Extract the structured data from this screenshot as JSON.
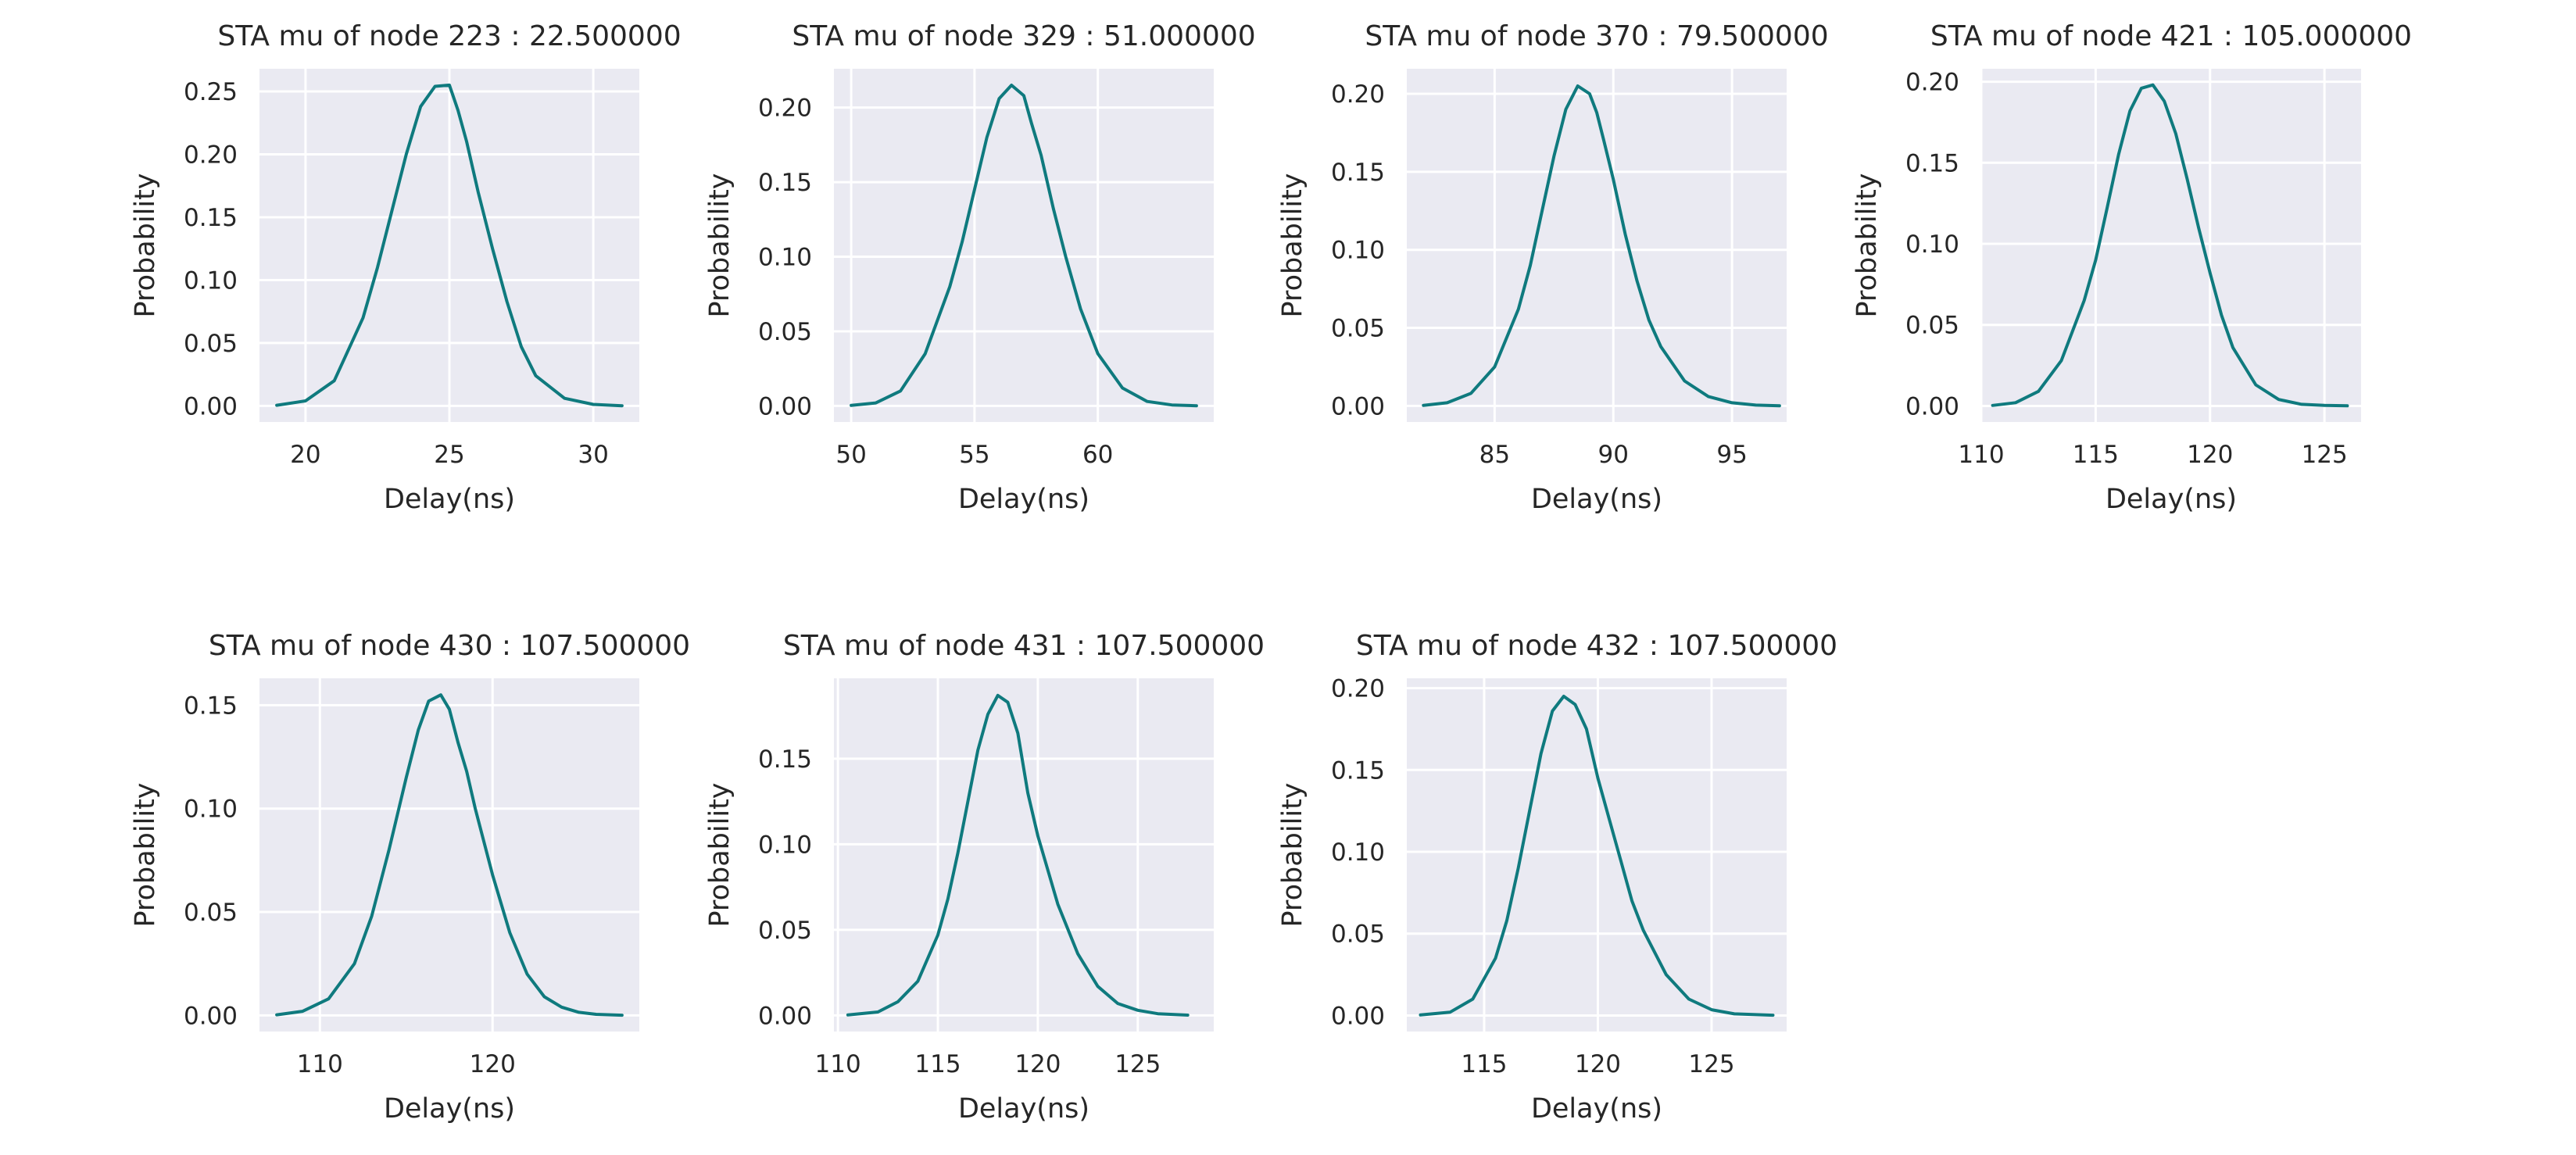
{
  "chart_data": [
    {
      "type": "line",
      "title": "STA mu of node 223 : 22.500000",
      "xlabel": "Delay(ns)",
      "ylabel": "Probability",
      "xlim": [
        18.4,
        31.6
      ],
      "ylim": [
        -0.0128,
        0.268
      ],
      "xticks": [
        20,
        25,
        30
      ],
      "yticks": [
        0.0,
        0.05,
        0.1,
        0.15,
        0.2,
        0.25
      ],
      "xtick_labels": [
        "20",
        "25",
        "30"
      ],
      "ytick_labels": [
        "0.00",
        "0.05",
        "0.10",
        "0.15",
        "0.20",
        "0.25"
      ],
      "grid": true,
      "series": [
        {
          "x": [
            19,
            20,
            21,
            22,
            22.5,
            23,
            23.5,
            24,
            24.5,
            25,
            25.3,
            25.6,
            26,
            26.5,
            27,
            27.5,
            28,
            29,
            30,
            31
          ],
          "values": [
            0.0005,
            0.004,
            0.02,
            0.07,
            0.11,
            0.155,
            0.2,
            0.238,
            0.254,
            0.255,
            0.235,
            0.21,
            0.17,
            0.125,
            0.083,
            0.047,
            0.024,
            0.006,
            0.0012,
            0.0001
          ]
        }
      ]
    },
    {
      "type": "line",
      "title": "STA mu of node 329 : 51.000000",
      "xlabel": "Delay(ns)",
      "ylabel": "Probability",
      "xlim": [
        49.3,
        64.7
      ],
      "ylim": [
        -0.0108,
        0.226
      ],
      "xticks": [
        50,
        55,
        60
      ],
      "yticks": [
        0.0,
        0.05,
        0.1,
        0.15,
        0.2
      ],
      "xtick_labels": [
        "50",
        "55",
        "60"
      ],
      "ytick_labels": [
        "0.00",
        "0.05",
        "0.10",
        "0.15",
        "0.20"
      ],
      "grid": true,
      "series": [
        {
          "x": [
            50,
            51,
            52,
            53,
            54,
            54.5,
            55,
            55.5,
            56,
            56.5,
            57,
            57.3,
            57.7,
            58.2,
            58.7,
            59.3,
            60,
            61,
            62,
            63,
            64
          ],
          "values": [
            0.0003,
            0.002,
            0.01,
            0.035,
            0.08,
            0.11,
            0.145,
            0.18,
            0.206,
            0.215,
            0.208,
            0.19,
            0.168,
            0.132,
            0.1,
            0.065,
            0.035,
            0.012,
            0.003,
            0.0006,
            0.0001
          ]
        }
      ]
    },
    {
      "type": "line",
      "title": "STA mu of node 370 : 79.500000",
      "xlabel": "Delay(ns)",
      "ylabel": "Probability",
      "xlim": [
        81.3,
        97.3
      ],
      "ylim": [
        -0.0103,
        0.216
      ],
      "xticks": [
        85,
        90,
        95
      ],
      "yticks": [
        0.0,
        0.05,
        0.1,
        0.15,
        0.2
      ],
      "xtick_labels": [
        "85",
        "90",
        "95"
      ],
      "ytick_labels": [
        "0.00",
        "0.05",
        "0.10",
        "0.15",
        "0.20"
      ],
      "grid": true,
      "series": [
        {
          "x": [
            82,
            83,
            84,
            85,
            86,
            86.5,
            87,
            87.5,
            88,
            88.5,
            89,
            89.3,
            89.6,
            90,
            90.5,
            91,
            91.5,
            92,
            93,
            94,
            95,
            96,
            97
          ],
          "values": [
            0.0003,
            0.002,
            0.008,
            0.025,
            0.062,
            0.09,
            0.125,
            0.16,
            0.19,
            0.205,
            0.2,
            0.188,
            0.17,
            0.145,
            0.11,
            0.08,
            0.055,
            0.038,
            0.016,
            0.006,
            0.002,
            0.0005,
            0.0001
          ]
        }
      ]
    },
    {
      "type": "line",
      "title": "STA mu of node 421 : 105.000000",
      "xlabel": "Delay(ns)",
      "ylabel": "Probability",
      "xlim": [
        110.0,
        126.6
      ],
      "ylim": [
        -0.0099,
        0.208
      ],
      "xticks": [
        110,
        115,
        120,
        125
      ],
      "yticks": [
        0.0,
        0.05,
        0.1,
        0.15,
        0.2
      ],
      "xtick_labels": [
        "110",
        "115",
        "120",
        "125"
      ],
      "ytick_labels": [
        "0.00",
        "0.05",
        "0.10",
        "0.15",
        "0.20"
      ],
      "grid": true,
      "series": [
        {
          "x": [
            110.5,
            111.5,
            112.5,
            113.5,
            114.5,
            115,
            115.5,
            116,
            116.5,
            117,
            117.5,
            118,
            118.5,
            119,
            119.5,
            120,
            120.5,
            121,
            122,
            123,
            124,
            125,
            126
          ],
          "values": [
            0.0003,
            0.002,
            0.009,
            0.028,
            0.065,
            0.09,
            0.122,
            0.155,
            0.182,
            0.196,
            0.198,
            0.188,
            0.168,
            0.14,
            0.11,
            0.082,
            0.056,
            0.036,
            0.013,
            0.004,
            0.001,
            0.0003,
            0.0001
          ]
        }
      ]
    },
    {
      "type": "line",
      "title": "STA mu of node 430 : 107.500000",
      "xlabel": "Delay(ns)",
      "ylabel": "Probability",
      "xlim": [
        106.5,
        128.5
      ],
      "ylim": [
        -0.0078,
        0.163
      ],
      "xticks": [
        110,
        120
      ],
      "yticks": [
        0.0,
        0.05,
        0.1,
        0.15
      ],
      "xtick_labels": [
        "110",
        "120"
      ],
      "ytick_labels": [
        "0.00",
        "0.05",
        "0.10",
        "0.15"
      ],
      "grid": true,
      "series": [
        {
          "x": [
            107.5,
            109,
            110.5,
            112,
            113,
            114,
            115,
            115.7,
            116.3,
            117,
            117.5,
            118,
            118.5,
            119,
            120,
            121,
            122,
            123,
            124,
            125,
            126,
            127.5
          ],
          "values": [
            0.0003,
            0.002,
            0.008,
            0.025,
            0.048,
            0.08,
            0.115,
            0.138,
            0.152,
            0.155,
            0.148,
            0.132,
            0.118,
            0.1,
            0.068,
            0.04,
            0.02,
            0.009,
            0.004,
            0.0015,
            0.0005,
            0.0001
          ]
        }
      ]
    },
    {
      "type": "line",
      "title": "STA mu of node 431 : 107.500000",
      "xlabel": "Delay(ns)",
      "ylabel": "Probability",
      "xlim": [
        109.8,
        128.8
      ],
      "ylim": [
        -0.0094,
        0.197
      ],
      "xticks": [
        110,
        115,
        120,
        125
      ],
      "yticks": [
        0.0,
        0.05,
        0.1,
        0.15
      ],
      "xtick_labels": [
        "110",
        "115",
        "120",
        "125"
      ],
      "ytick_labels": [
        "0.00",
        "0.05",
        "0.10",
        "0.15"
      ],
      "grid": true,
      "series": [
        {
          "x": [
            110.5,
            112,
            113,
            114,
            115,
            115.5,
            116,
            116.5,
            117,
            117.5,
            118,
            118.5,
            119,
            119.5,
            120,
            121,
            122,
            123,
            124,
            125,
            126,
            127.5
          ],
          "values": [
            0.0003,
            0.002,
            0.008,
            0.02,
            0.047,
            0.068,
            0.095,
            0.125,
            0.155,
            0.176,
            0.187,
            0.183,
            0.165,
            0.13,
            0.105,
            0.065,
            0.036,
            0.017,
            0.007,
            0.003,
            0.001,
            0.0002
          ]
        }
      ]
    },
    {
      "type": "line",
      "title": "STA mu of node 432 : 107.500000",
      "xlabel": "Delay(ns)",
      "ylabel": "Probability",
      "xlim": [
        111.6,
        128.3
      ],
      "ylim": [
        -0.0098,
        0.206
      ],
      "xticks": [
        115,
        120,
        125
      ],
      "yticks": [
        0.0,
        0.05,
        0.1,
        0.15,
        0.2
      ],
      "xtick_labels": [
        "115",
        "120",
        "125"
      ],
      "ytick_labels": [
        "0.00",
        "0.05",
        "0.10",
        "0.15",
        "0.20"
      ],
      "grid": true,
      "series": [
        {
          "x": [
            112.2,
            113.5,
            114.5,
            115.5,
            116,
            116.5,
            117,
            117.5,
            118,
            118.5,
            119,
            119.5,
            120,
            120.5,
            121,
            121.5,
            122,
            123,
            124,
            125,
            126,
            127.7
          ],
          "values": [
            0.0003,
            0.002,
            0.01,
            0.035,
            0.058,
            0.09,
            0.125,
            0.16,
            0.186,
            0.195,
            0.19,
            0.175,
            0.145,
            0.12,
            0.095,
            0.07,
            0.052,
            0.025,
            0.01,
            0.0035,
            0.001,
            0.0002
          ]
        }
      ]
    }
  ],
  "style": {
    "axes_background": "#eaeaf2",
    "grid_color": "#ffffff",
    "line_color": "#0f7a7e",
    "text_color": "#262626"
  }
}
